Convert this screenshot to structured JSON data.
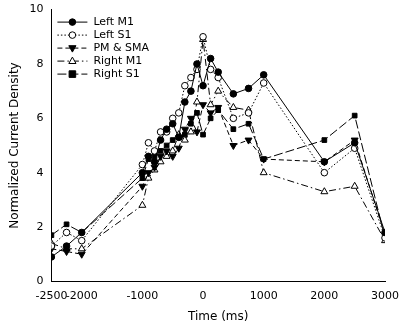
{
  "chart_data": {
    "type": "line",
    "x_label": "Time (ms)",
    "y_label": "Normalized Current Density",
    "x": [
      -2500,
      -2250,
      -2000,
      -1000,
      -900,
      -800,
      -700,
      -600,
      -500,
      -400,
      -300,
      -200,
      -100,
      0,
      125,
      250,
      500,
      750,
      1000,
      2000,
      2500,
      3000
    ],
    "series": [
      {
        "name": "Left M1",
        "color": "#000000",
        "marker": "circle",
        "line_style": "solid",
        "values": [
          0.9,
          1.3,
          1.8,
          4.0,
          4.6,
          4.4,
          5.2,
          5.6,
          5.8,
          5.3,
          6.6,
          7.0,
          8.0,
          7.2,
          8.2,
          7.7,
          6.9,
          7.1,
          7.6,
          4.4,
          5.1,
          1.8
        ]
      },
      {
        "name": "Left S1",
        "color": "#000000",
        "marker": "circle-open",
        "line_style": "dotted",
        "values": [
          1.3,
          1.8,
          1.5,
          4.3,
          5.1,
          4.8,
          5.5,
          5.5,
          6.0,
          6.2,
          7.2,
          7.5,
          7.8,
          9.0,
          7.8,
          7.5,
          6.0,
          6.2,
          7.3,
          4.0,
          4.9,
          1.6
        ]
      },
      {
        "name": "PM & SMA",
        "color": "#000000",
        "marker": "triangle-down",
        "line_style": "dashed",
        "values": [
          1.2,
          1.1,
          1.0,
          3.5,
          4.0,
          4.2,
          4.6,
          4.8,
          4.6,
          4.9,
          5.6,
          6.0,
          5.5,
          6.5,
          6.2,
          6.4,
          5.0,
          5.2,
          4.5,
          4.4,
          5.2,
          1.7
        ]
      },
      {
        "name": "Right M1",
        "color": "#000000",
        "marker": "triangle-open",
        "line_style": "dashdot",
        "values": [
          1.4,
          1.2,
          1.2,
          2.8,
          3.8,
          4.1,
          4.4,
          4.6,
          4.8,
          5.4,
          5.2,
          5.5,
          6.6,
          8.9,
          6.5,
          7.0,
          6.4,
          6.3,
          4.0,
          3.3,
          3.5,
          1.5
        ]
      },
      {
        "name": "Right S1",
        "color": "#000000",
        "marker": "square",
        "line_style": "longdash",
        "values": [
          1.7,
          2.1,
          1.8,
          3.8,
          4.5,
          4.6,
          4.8,
          5.0,
          5.2,
          5.3,
          5.4,
          5.8,
          6.2,
          5.4,
          6.0,
          6.3,
          5.6,
          5.8,
          4.5,
          5.2,
          6.1,
          1.6
        ]
      }
    ],
    "xlim": [
      -2500,
      3000
    ],
    "xticks": [
      -2500,
      -2000,
      -1000,
      0,
      1000,
      2000,
      3000
    ],
    "ylim": [
      0,
      10
    ],
    "yticks": [
      0,
      2,
      4,
      6,
      8,
      10
    ],
    "grid": false,
    "legend": "upper left"
  }
}
